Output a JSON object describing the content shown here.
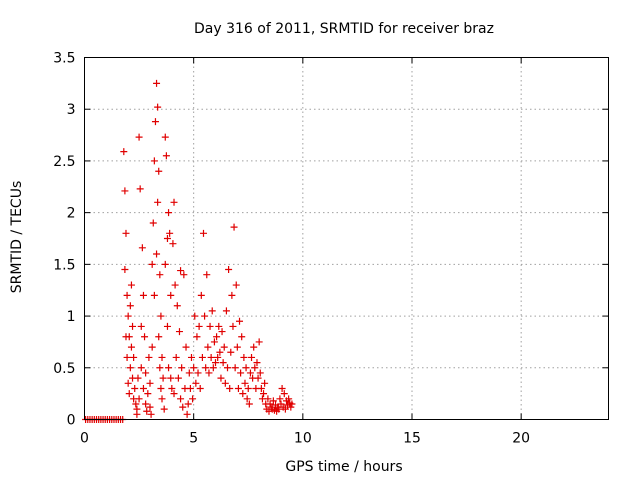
{
  "chart_data": {
    "type": "scatter",
    "title": "Day 316 of 2011, SRMTID for receiver braz",
    "xlabel": "GPS time / hours",
    "ylabel": "SRMTID / TECUs",
    "xlim": [
      0,
      24
    ],
    "ylim": [
      0,
      3.5
    ],
    "x_ticks": [
      0,
      5,
      10,
      15,
      20
    ],
    "x_tick_labels": [
      "0",
      "5",
      "10",
      "15",
      "20"
    ],
    "y_ticks": [
      0,
      0.5,
      1,
      1.5,
      2,
      2.5,
      3,
      3.5
    ],
    "y_tick_labels": [
      "0",
      "0.5",
      "1",
      "1.5",
      "2",
      "2.5",
      "3",
      "3.5"
    ],
    "grid": true,
    "marker": "+",
    "colors": {
      "series": "#e00000",
      "grid": "#a0a0a0",
      "axes": "#000000"
    },
    "series": [
      {
        "name": "SRMTID",
        "x": [
          0.05,
          0.15,
          0.25,
          0.35,
          0.45,
          0.55,
          0.65,
          0.75,
          0.85,
          0.95,
          1.05,
          1.15,
          1.25,
          1.35,
          1.45,
          1.55,
          1.65,
          1.75,
          1.8,
          1.85,
          1.85,
          1.9,
          1.9,
          1.95,
          1.95,
          2.0,
          2.0,
          2.05,
          2.05,
          2.1,
          2.1,
          2.15,
          2.15,
          2.2,
          2.2,
          2.25,
          2.25,
          2.3,
          2.35,
          2.4,
          2.4,
          2.45,
          2.5,
          2.5,
          2.55,
          2.6,
          2.6,
          2.65,
          2.7,
          2.7,
          2.75,
          2.8,
          2.8,
          2.85,
          2.9,
          2.95,
          3.0,
          3.0,
          3.05,
          3.1,
          3.1,
          3.15,
          3.2,
          3.2,
          3.25,
          3.3,
          3.3,
          3.35,
          3.35,
          3.4,
          3.4,
          3.45,
          3.45,
          3.5,
          3.5,
          3.55,
          3.55,
          3.6,
          3.65,
          3.7,
          3.7,
          3.75,
          3.8,
          3.8,
          3.85,
          3.85,
          3.9,
          3.95,
          3.95,
          4.0,
          4.05,
          4.1,
          4.1,
          4.15,
          4.2,
          4.25,
          4.3,
          4.35,
          4.4,
          4.4,
          4.45,
          4.5,
          4.55,
          4.6,
          4.65,
          4.7,
          4.75,
          4.8,
          4.85,
          4.9,
          4.95,
          5.0,
          5.05,
          5.1,
          5.15,
          5.2,
          5.25,
          5.3,
          5.35,
          5.4,
          5.45,
          5.5,
          5.55,
          5.6,
          5.65,
          5.7,
          5.75,
          5.8,
          5.85,
          5.9,
          5.95,
          6.0,
          6.05,
          6.1,
          6.15,
          6.2,
          6.25,
          6.3,
          6.35,
          6.4,
          6.45,
          6.5,
          6.55,
          6.6,
          6.65,
          6.7,
          6.75,
          6.8,
          6.85,
          6.9,
          6.95,
          7.0,
          7.05,
          7.1,
          7.15,
          7.2,
          7.25,
          7.3,
          7.35,
          7.4,
          7.45,
          7.5,
          7.55,
          7.6,
          7.65,
          7.7,
          7.75,
          7.8,
          7.85,
          7.9,
          7.95,
          8.0,
          8.05,
          8.1,
          8.15,
          8.2,
          8.25,
          8.3,
          8.35,
          8.4,
          8.45,
          8.5,
          8.55,
          8.6,
          8.65,
          8.7,
          8.75,
          8.8,
          8.85,
          8.9,
          8.95,
          9.0,
          9.05,
          9.1,
          9.15,
          9.2,
          9.25,
          9.3,
          9.35,
          9.4,
          9.45,
          9.5
        ],
        "y": [
          0,
          0,
          0,
          0,
          0,
          0,
          0,
          0,
          0,
          0,
          0,
          0,
          0,
          0,
          0,
          0,
          0,
          0,
          2.59,
          2.21,
          1.45,
          1.8,
          0.8,
          1.2,
          0.6,
          1.0,
          0.35,
          0.8,
          0.25,
          1.1,
          0.5,
          1.3,
          0.7,
          0.9,
          0.4,
          0.6,
          0.2,
          0.3,
          0.15,
          0.1,
          0.05,
          0.4,
          2.73,
          0.2,
          2.23,
          0.9,
          0.5,
          1.66,
          1.2,
          0.3,
          0.8,
          0.15,
          0.45,
          0.08,
          0.25,
          0.6,
          0.12,
          0.35,
          0.05,
          1.5,
          0.7,
          1.9,
          2.5,
          1.2,
          2.88,
          3.25,
          1.6,
          3.02,
          2.1,
          2.4,
          0.8,
          1.4,
          0.5,
          1.0,
          0.3,
          0.6,
          0.2,
          0.4,
          0.1,
          2.73,
          1.5,
          2.55,
          1.75,
          0.9,
          2.0,
          0.5,
          1.8,
          1.2,
          0.4,
          0.3,
          1.7,
          2.1,
          0.25,
          1.3,
          0.6,
          1.1,
          0.4,
          0.85,
          1.44,
          0.2,
          0.5,
          0.12,
          1.4,
          0.3,
          0.7,
          0.05,
          0.15,
          0.45,
          0.3,
          0.6,
          0.2,
          0.5,
          1.0,
          0.35,
          0.8,
          0.45,
          0.9,
          0.3,
          1.2,
          0.6,
          1.8,
          1.0,
          0.5,
          1.4,
          0.7,
          0.45,
          0.9,
          0.6,
          1.05,
          0.5,
          0.75,
          0.55,
          0.8,
          0.6,
          0.9,
          0.65,
          0.4,
          0.85,
          0.55,
          0.7,
          0.35,
          1.05,
          0.5,
          1.45,
          0.3,
          0.65,
          1.2,
          0.9,
          1.86,
          0.5,
          1.3,
          0.7,
          0.3,
          0.95,
          0.45,
          0.8,
          0.25,
          0.6,
          0.35,
          0.5,
          0.2,
          0.3,
          0.15,
          0.45,
          0.6,
          0.4,
          0.7,
          0.5,
          0.3,
          0.55,
          0.4,
          0.75,
          0.45,
          0.3,
          0.2,
          0.25,
          0.35,
          0.15,
          0.1,
          0.2,
          0.08,
          0.15,
          0.12,
          0.1,
          0.18,
          0.09,
          0.14,
          0.08,
          0.12,
          0.1,
          0.2,
          0.15,
          0.3,
          0.12,
          0.25,
          0.1,
          0.18,
          0.14,
          0.2,
          0.16,
          0.12,
          0.15
        ]
      }
    ]
  }
}
